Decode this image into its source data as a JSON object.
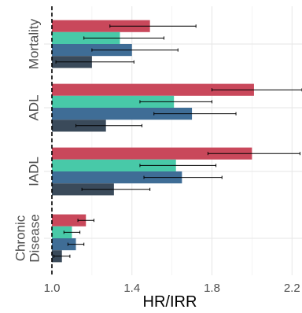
{
  "chart_data": {
    "type": "bar",
    "orientation": "horizontal",
    "xlabel": "HR/IRR",
    "xlim": [
      1.0,
      2.25
    ],
    "xticks": [
      1.0,
      1.4,
      1.8,
      2.2
    ],
    "xtick_labels": [
      "1.0",
      "1.4",
      "1.8",
      "2.2"
    ],
    "reference_line": 1.0,
    "grid": true,
    "series_colors": [
      "#c9485b",
      "#48c9a8",
      "#3f6d96",
      "#3a4a5a"
    ],
    "groups": [
      {
        "label_lines": [
          "Mortality"
        ],
        "bars": [
          {
            "value": 1.49,
            "lower": 1.29,
            "upper": 1.72
          },
          {
            "value": 1.34,
            "lower": 1.16,
            "upper": 1.56
          },
          {
            "value": 1.4,
            "lower": 1.2,
            "upper": 1.63
          },
          {
            "value": 1.2,
            "lower": 1.02,
            "upper": 1.41
          }
        ]
      },
      {
        "label_lines": [
          "ADL"
        ],
        "bars": [
          {
            "value": 2.01,
            "lower": 1.8,
            "upper": 2.25
          },
          {
            "value": 1.61,
            "lower": 1.44,
            "upper": 1.8
          },
          {
            "value": 1.7,
            "lower": 1.51,
            "upper": 1.92
          },
          {
            "value": 1.27,
            "lower": 1.12,
            "upper": 1.45
          }
        ]
      },
      {
        "label_lines": [
          "IADL"
        ],
        "bars": [
          {
            "value": 2.0,
            "lower": 1.78,
            "upper": 2.24
          },
          {
            "value": 1.62,
            "lower": 1.44,
            "upper": 1.82
          },
          {
            "value": 1.65,
            "lower": 1.46,
            "upper": 1.85
          },
          {
            "value": 1.31,
            "lower": 1.15,
            "upper": 1.49
          }
        ]
      },
      {
        "label_lines": [
          "Chronic",
          "Disease"
        ],
        "bars": [
          {
            "value": 1.17,
            "lower": 1.13,
            "upper": 1.21
          },
          {
            "value": 1.1,
            "lower": 1.06,
            "upper": 1.14
          },
          {
            "value": 1.12,
            "lower": 1.08,
            "upper": 1.16
          },
          {
            "value": 1.05,
            "lower": 1.01,
            "upper": 1.09
          }
        ]
      }
    ]
  }
}
